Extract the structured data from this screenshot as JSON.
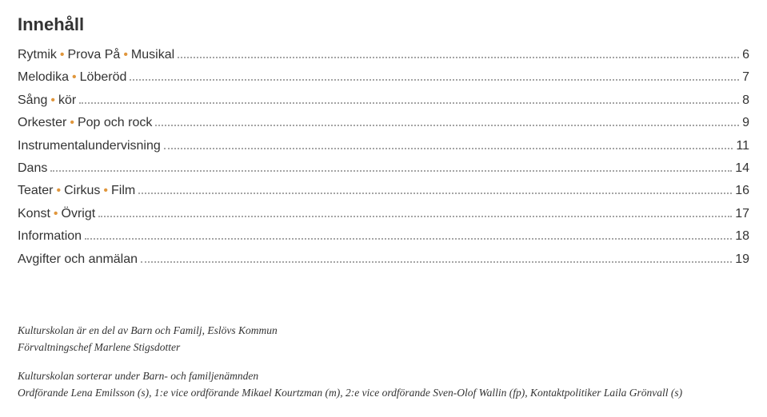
{
  "title": "Innehåll",
  "accent_color": "#e0963c",
  "toc": [
    {
      "parts": [
        {
          "t": "Rytmik"
        },
        {
          "t": "•",
          "accent": true
        },
        {
          "t": "Prova På"
        },
        {
          "t": "•",
          "accent": true
        },
        {
          "t": "Musikal"
        }
      ],
      "page": "6"
    },
    {
      "parts": [
        {
          "t": "Melodika"
        },
        {
          "t": "•",
          "accent": true
        },
        {
          "t": "Löberöd"
        }
      ],
      "page": "7"
    },
    {
      "parts": [
        {
          "t": "Sång"
        },
        {
          "t": "•",
          "accent": true
        },
        {
          "t": "kör"
        }
      ],
      "page": "8"
    },
    {
      "parts": [
        {
          "t": "Orkester"
        },
        {
          "t": "•",
          "accent": true
        },
        {
          "t": "Pop och rock"
        }
      ],
      "page": "9"
    },
    {
      "parts": [
        {
          "t": "Instrumentalundervisning"
        }
      ],
      "page": "11"
    },
    {
      "parts": [
        {
          "t": "Dans"
        }
      ],
      "page": "14"
    },
    {
      "parts": [
        {
          "t": "Teater"
        },
        {
          "t": "•",
          "accent": true
        },
        {
          "t": "Cirkus"
        },
        {
          "t": "•",
          "accent": true
        },
        {
          "t": "Film"
        }
      ],
      "page": "16"
    },
    {
      "parts": [
        {
          "t": "Konst"
        },
        {
          "t": "•",
          "accent": true
        },
        {
          "t": "Övrigt"
        }
      ],
      "page": "17"
    },
    {
      "parts": [
        {
          "t": "Information"
        }
      ],
      "page": "18"
    },
    {
      "parts": [
        {
          "t": "Avgifter och anmälan"
        }
      ],
      "page": "19"
    }
  ],
  "credits": {
    "line1": "Kulturskolan är en del av  Barn och Familj, Eslövs Kommun",
    "line2": "Förvaltningschef Marlene Stigsdotter",
    "line3": "Kulturskolan sorterar under Barn- och familjenämnden",
    "line4": "Ordförande Lena Emilsson (s), 1:e vice ordförande Mikael Kourtzman (m), 2:e vice ordförande Sven-Olof Wallin (fp), Kontaktpolitiker Laila Grönvall (s)"
  }
}
